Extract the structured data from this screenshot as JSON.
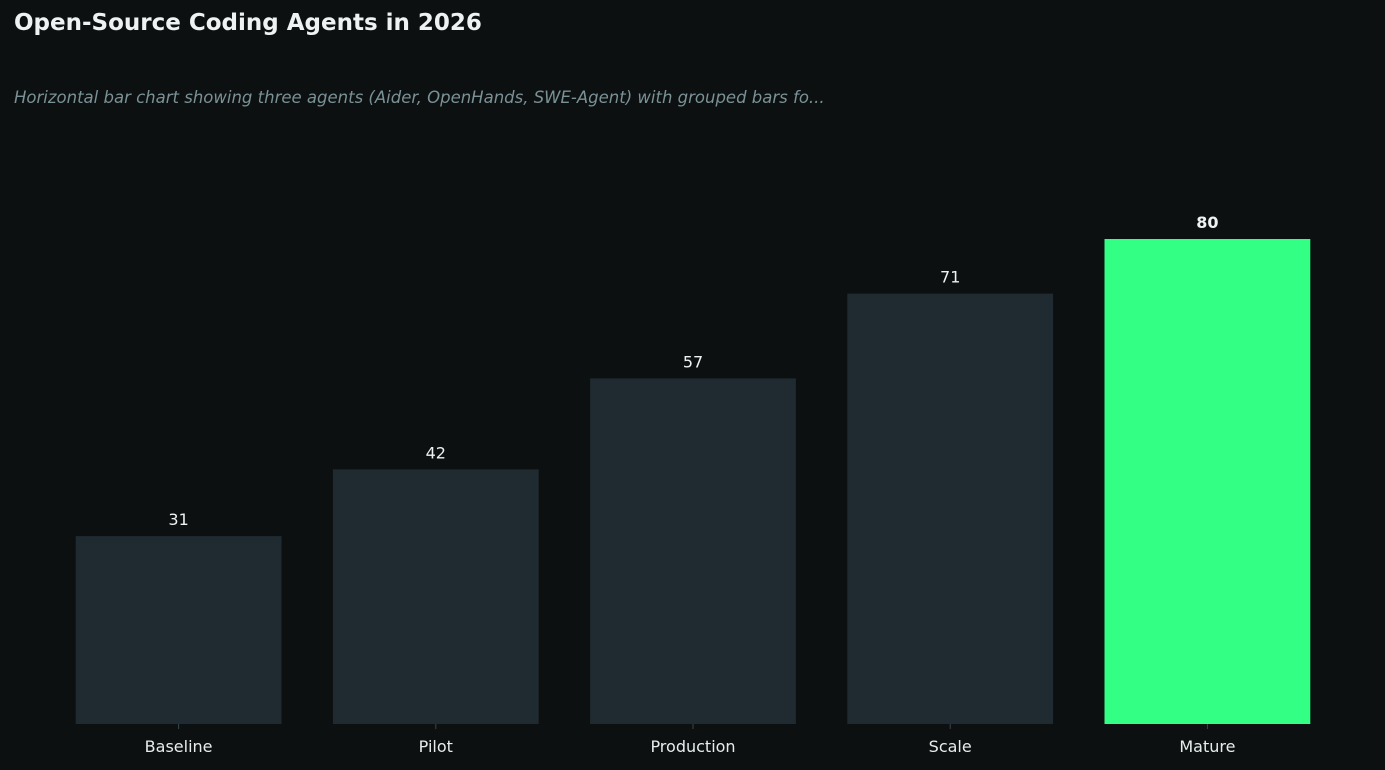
{
  "title": "Open-Source Coding Agents in 2026",
  "subtitle": "Horizontal bar chart showing three agents (Aider, OpenHands, SWE-Agent) with grouped bars fo...",
  "colors": {
    "background": "#0c1011",
    "bar_default": "#1f2b30",
    "bar_highlight": "#33ff85",
    "label_text": "#eef2f3",
    "subtitle_text": "#7a9196",
    "tick_mark": "#3a4649"
  },
  "chart_data": {
    "type": "bar",
    "title": "Open-Source Coding Agents in 2026",
    "subtitle": "Horizontal bar chart showing three agents (Aider, OpenHands, SWE-Agent) with grouped bars fo...",
    "categories": [
      "Baseline",
      "Pilot",
      "Production",
      "Scale",
      "Mature"
    ],
    "values": [
      31,
      42,
      57,
      71,
      80
    ],
    "highlight": "Mature",
    "xlabel": "",
    "ylabel": "",
    "ylim": [
      0,
      80
    ],
    "grid": false,
    "legend": "none",
    "data_labels": true
  }
}
